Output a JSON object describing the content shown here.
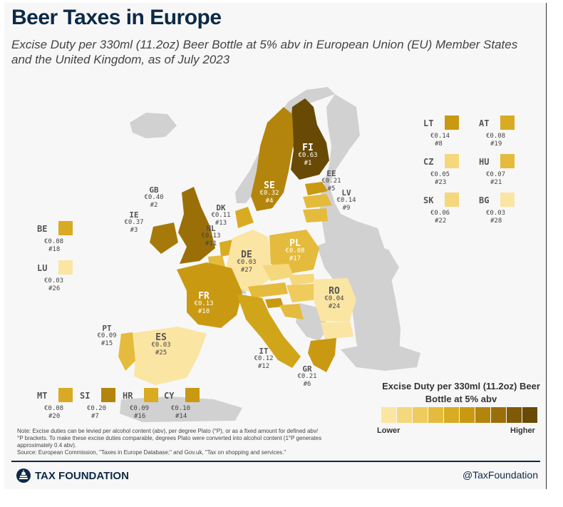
{
  "header": {
    "title": "Beer Taxes in Europe",
    "subtitle": "Excise Duty per 330ml (11.2oz) Beer Bottle at 5% abv in European Union (EU) Member States and the United Kingdom, as of July 2023"
  },
  "colors": {
    "scale": [
      "#fbe5a3",
      "#f5d77c",
      "#eecb5c",
      "#e4bb3c",
      "#d9ab22",
      "#c99912",
      "#b4850c",
      "#9b6f08",
      "#805a06",
      "#684a05"
    ],
    "non_eu": "#d1d1d2",
    "background": "#f7f7f7",
    "brand": "#0c2a47"
  },
  "map_labels": {
    "fi": {
      "code": "FI",
      "value": "€0.63",
      "rank": "#1"
    },
    "se": {
      "code": "SE",
      "value": "€0.32",
      "rank": "#4"
    },
    "ee": {
      "code": "EE",
      "value": "€0.21",
      "rank": "#5"
    },
    "lv": {
      "code": "LV",
      "value": "€0.14",
      "rank": "#9"
    },
    "gb": {
      "code": "GB",
      "value": "€0.40",
      "rank": "#2"
    },
    "ie": {
      "code": "IE",
      "value": "€0.37",
      "rank": "#3"
    },
    "dk": {
      "code": "DK",
      "value": "€0.11",
      "rank": "#13"
    },
    "nl": {
      "code": "NL",
      "value": "€0.13",
      "rank": "#11"
    },
    "de": {
      "code": "DE",
      "value": "€0.03",
      "rank": "#27"
    },
    "pl": {
      "code": "PL",
      "value": "€0.08",
      "rank": "#17"
    },
    "fr": {
      "code": "FR",
      "value": "€0.13",
      "rank": "#10"
    },
    "ro": {
      "code": "RO",
      "value": "€0.04",
      "rank": "#24"
    },
    "pt": {
      "code": "PT",
      "value": "€0.09",
      "rank": "#15"
    },
    "es": {
      "code": "ES",
      "value": "€0.03",
      "rank": "#25"
    },
    "it": {
      "code": "IT",
      "value": "€0.12",
      "rank": "#12"
    },
    "gr": {
      "code": "GR",
      "value": "€0.21",
      "rank": "#6"
    }
  },
  "insets": {
    "lt": {
      "code": "LT",
      "value": "€0.14",
      "rank": "#8"
    },
    "at": {
      "code": "AT",
      "value": "€0.08",
      "rank": "#19"
    },
    "cz": {
      "code": "CZ",
      "value": "€0.05",
      "rank": "#23"
    },
    "hu": {
      "code": "HU",
      "value": "€0.07",
      "rank": "#21"
    },
    "sk": {
      "code": "SK",
      "value": "€0.06",
      "rank": "#22"
    },
    "bg": {
      "code": "BG",
      "value": "€0.03",
      "rank": "#28"
    },
    "be": {
      "code": "BE",
      "value": "€0.08",
      "rank": "#18"
    },
    "lu": {
      "code": "LU",
      "value": "€0.03",
      "rank": "#26"
    },
    "mt": {
      "code": "MT",
      "value": "€0.08",
      "rank": "#20"
    },
    "si": {
      "code": "SI",
      "value": "€0.20",
      "rank": "#7"
    },
    "hr": {
      "code": "HR",
      "value": "€0.09",
      "rank": "#16"
    },
    "cy": {
      "code": "CY",
      "value": "€0.10",
      "rank": "#14"
    }
  },
  "legend": {
    "title": "Excise Duty per 330ml (11.2oz) Beer Bottle at 5% abv",
    "low": "Lower",
    "high": "Higher"
  },
  "note": {
    "text": "Note: Excise duties can be levied per alcohol content (abv), per degree Plato (°P), or as a fixed amount for defined abv/°P brackets. To make these excise duties comparable, degrees Plato were converted into alcohol content (1°P generates approximately 0.4 abv).",
    "source": "Source: European Commission, \"Taxes in Europe Database;\" and Gov.uk, \"Tax on shopping and services.\""
  },
  "footer": {
    "brand": "TAX FOUNDATION",
    "handle": "@TaxFoundation"
  }
}
